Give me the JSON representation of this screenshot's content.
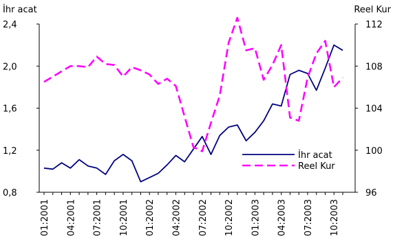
{
  "chart_data": {
    "type": "line",
    "left_axis_label": "İhr acat",
    "right_axis_label": "Reel Kur",
    "ylim_left": [
      0.8,
      2.4
    ],
    "ylim_right": [
      96,
      112
    ],
    "yticks_left": [
      "2,4",
      "2,0",
      "1,6",
      "1,2",
      "0,8"
    ],
    "yticks_left_values": [
      2.4,
      2.0,
      1.6,
      1.2,
      0.8
    ],
    "yticks_right": [
      "112",
      "108",
      "104",
      "100",
      "96"
    ],
    "yticks_right_values": [
      112,
      108,
      104,
      100,
      96
    ],
    "x_tick_labels": [
      "01:2001",
      "04:2001",
      "07:2001",
      "10:2001",
      "01:2002",
      "04:2002",
      "07:2002",
      "10:2002",
      "01:2003",
      "04:2003",
      "07:2003",
      "10:2003"
    ],
    "grid": false,
    "legend_position": "lower-right",
    "series": [
      {
        "name": "İhr acat",
        "axis": "left",
        "color": "#000080",
        "style": "solid",
        "values": [
          1.03,
          1.02,
          1.08,
          1.03,
          1.11,
          1.05,
          1.03,
          0.97,
          1.1,
          1.16,
          1.1,
          0.9,
          0.94,
          0.98,
          1.06,
          1.15,
          1.09,
          1.21,
          1.33,
          1.16,
          1.34,
          1.42,
          1.44,
          1.29,
          1.37,
          1.48,
          1.64,
          1.62,
          1.92,
          1.96,
          1.93,
          1.77,
          1.98,
          2.2,
          2.15
        ]
      },
      {
        "name": "Reel Kur",
        "axis": "right",
        "color": "#ff00ff",
        "style": "dashed",
        "values": [
          106.5,
          107.0,
          107.5,
          108.0,
          108.0,
          107.9,
          108.9,
          108.2,
          108.1,
          107.0,
          107.9,
          107.6,
          107.2,
          106.3,
          106.8,
          106.1,
          103.2,
          100.3,
          99.9,
          102.6,
          105.2,
          110.2,
          112.6,
          109.5,
          109.7,
          106.7,
          108.1,
          110.0,
          103.1,
          102.8,
          106.9,
          109.2,
          110.4,
          106.0,
          106.9
        ]
      }
    ]
  }
}
